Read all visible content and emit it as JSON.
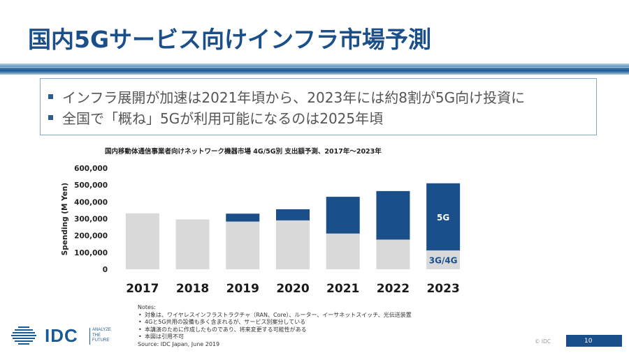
{
  "slide": {
    "title": "国内5Gサービス向けインフラ市場予測",
    "bullets": [
      "インフラ展開が加速は2021年頃から、2023年には約8割が5G向け投資に",
      "全国で「概ね」5Gが利用可能になるのは2025年頃"
    ],
    "notes_heading": "Notes:",
    "notes": [
      "対象は、ワイヤレスインフラストラクチャ（RAN、Core）、ルーター、イーサネットスイッチ、光伝送装置",
      "4Gと5G共用の設備も多く含まれるが、サービス別案分している",
      "本講演のために作成したものであり、将来変更する可能性がある",
      "本図は引用不可"
    ],
    "source": "Source: IDC Japan, June 2019",
    "logo_text": "IDC",
    "logo_tagline": [
      "ANALYZE",
      "THE",
      "FUTURE"
    ],
    "copyright": "© IDC",
    "page_number": "10"
  },
  "colors": {
    "title": "#1b4f8a",
    "series_5g": "#1b4f8a",
    "series_3g4g": "#d9d9d9",
    "label_3g4g": "#1b4f8a"
  },
  "chart_data": {
    "type": "bar",
    "stacked": true,
    "title": "国内移動体通信事業者向けネットワーク機器市場 4G/5G別 支出額予測、2017年～2023年",
    "ylabel": "Spending (M Yen)",
    "xlabel": "",
    "categories": [
      "2017",
      "2018",
      "2019",
      "2020",
      "2021",
      "2022",
      "2023"
    ],
    "series": [
      {
        "name": "3G/4G",
        "values": [
          332000,
          296000,
          283000,
          290000,
          212000,
          176000,
          112000
        ]
      },
      {
        "name": "5G",
        "values": [
          0,
          0,
          47000,
          66000,
          218000,
          288000,
          398000
        ]
      }
    ],
    "ylim": [
      0,
      600000
    ],
    "yticks": [
      "0",
      "100,000",
      "200,000",
      "300,000",
      "400,000",
      "500,000",
      "600,000"
    ],
    "legend": "inline labels on 2023 bar"
  }
}
